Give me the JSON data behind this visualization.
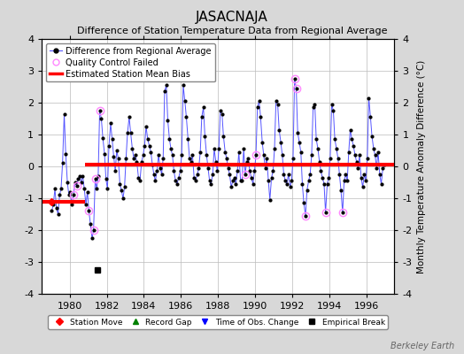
{
  "title": "JASACNAJA",
  "subtitle": "Difference of Station Temperature Data from Regional Average",
  "ylabel_right": "Monthly Temperature Anomaly Difference (°C)",
  "watermark": "Berkeley Earth",
  "ylim": [
    -4,
    4
  ],
  "xlim": [
    1978.5,
    1997.5
  ],
  "xticks": [
    1980,
    1982,
    1984,
    1986,
    1988,
    1990,
    1992,
    1994,
    1996
  ],
  "yticks": [
    -4,
    -3,
    -2,
    -1,
    0,
    1,
    2,
    3,
    4
  ],
  "bg_color": "#d8d8d8",
  "plot_bg_color": "#ffffff",
  "grid_color": "#bbbbbb",
  "line_color": "#5555ff",
  "marker_color": "#000000",
  "bias_color": "#ff0000",
  "qc_color": "#ff88ff",
  "title_fontsize": 11,
  "subtitle_fontsize": 8,
  "bias_segment1_y": -1.1,
  "bias_segment2_y": 0.05,
  "segment_break_x": 1980.83,
  "empirical_break_x": 1981.5,
  "empirical_break_y": -3.25,
  "station_move_x": 1979.0,
  "station_move_y": -1.1,
  "monthly_data": [
    1979.04,
    -1.4,
    1979.12,
    -1.2,
    1979.21,
    -0.7,
    1979.29,
    -1.3,
    1979.38,
    -1.5,
    1979.46,
    -0.9,
    1979.54,
    -0.7,
    1979.62,
    0.1,
    1979.71,
    1.65,
    1979.79,
    0.4,
    1979.88,
    -0.5,
    1979.96,
    -0.9,
    1980.04,
    -0.8,
    1980.12,
    -1.2,
    1980.21,
    -0.9,
    1980.29,
    -0.5,
    1980.38,
    -0.6,
    1980.46,
    -0.4,
    1980.54,
    -0.3,
    1980.62,
    -0.5,
    1980.71,
    -0.3,
    1980.79,
    -0.7,
    1980.88,
    -1.2,
    1980.96,
    -0.8,
    1981.04,
    -1.4,
    1981.12,
    -1.8,
    1981.21,
    -2.25,
    1981.29,
    -2.0,
    1981.38,
    -0.4,
    1981.46,
    -0.7,
    1981.54,
    -0.3,
    1981.62,
    1.75,
    1981.71,
    1.5,
    1981.79,
    0.9,
    1981.88,
    0.4,
    1981.96,
    -0.4,
    1982.04,
    -0.7,
    1982.12,
    0.65,
    1982.21,
    1.35,
    1982.29,
    0.85,
    1982.38,
    0.3,
    1982.46,
    -0.15,
    1982.54,
    0.5,
    1982.62,
    0.25,
    1982.71,
    -0.55,
    1982.79,
    -0.75,
    1982.88,
    -1.0,
    1982.96,
    -0.65,
    1983.04,
    0.25,
    1983.12,
    1.05,
    1983.21,
    1.55,
    1983.29,
    1.05,
    1983.38,
    0.55,
    1983.46,
    0.25,
    1983.54,
    0.35,
    1983.62,
    0.15,
    1983.71,
    -0.35,
    1983.79,
    -0.45,
    1983.88,
    0.15,
    1983.96,
    0.35,
    1984.04,
    0.65,
    1984.12,
    1.25,
    1984.21,
    0.85,
    1984.29,
    0.65,
    1984.38,
    0.45,
    1984.46,
    0.05,
    1984.54,
    -0.25,
    1984.62,
    -0.45,
    1984.71,
    -0.15,
    1984.79,
    0.35,
    1984.88,
    -0.05,
    1984.96,
    -0.25,
    1985.04,
    0.25,
    1985.12,
    2.35,
    1985.21,
    2.55,
    1985.29,
    1.45,
    1985.38,
    0.85,
    1985.46,
    0.55,
    1985.54,
    0.35,
    1985.62,
    -0.15,
    1985.71,
    -0.45,
    1985.79,
    -0.55,
    1985.88,
    -0.35,
    1985.96,
    -0.15,
    1986.04,
    0.35,
    1986.12,
    2.55,
    1986.21,
    2.05,
    1986.29,
    1.55,
    1986.38,
    0.85,
    1986.46,
    0.25,
    1986.54,
    0.15,
    1986.62,
    0.35,
    1986.71,
    -0.35,
    1986.79,
    -0.45,
    1986.88,
    -0.25,
    1986.96,
    -0.05,
    1987.04,
    0.45,
    1987.12,
    1.55,
    1987.21,
    1.85,
    1987.29,
    0.95,
    1987.38,
    0.35,
    1987.46,
    -0.05,
    1987.54,
    -0.45,
    1987.62,
    -0.55,
    1987.71,
    -0.25,
    1987.79,
    0.55,
    1987.88,
    0.15,
    1987.96,
    -0.15,
    1988.04,
    0.55,
    1988.12,
    1.75,
    1988.21,
    1.65,
    1988.29,
    0.95,
    1988.38,
    0.45,
    1988.46,
    0.25,
    1988.54,
    -0.05,
    1988.62,
    -0.25,
    1988.71,
    -0.65,
    1988.79,
    -0.45,
    1988.88,
    -0.35,
    1988.96,
    -0.55,
    1989.04,
    -0.15,
    1989.12,
    0.45,
    1989.21,
    -0.45,
    1989.29,
    -0.45,
    1989.38,
    0.55,
    1989.46,
    -0.25,
    1989.54,
    0.15,
    1989.62,
    0.25,
    1989.71,
    -0.15,
    1989.79,
    -0.35,
    1989.88,
    -0.55,
    1989.96,
    -0.15,
    1990.04,
    0.35,
    1990.12,
    1.85,
    1990.21,
    2.05,
    1990.29,
    1.55,
    1990.38,
    0.75,
    1990.46,
    0.35,
    1990.54,
    -0.05,
    1990.62,
    0.25,
    1990.71,
    -0.45,
    1990.79,
    -1.05,
    1990.88,
    -0.35,
    1990.96,
    -0.15,
    1991.04,
    0.55,
    1991.12,
    2.05,
    1991.21,
    1.95,
    1991.29,
    1.15,
    1991.38,
    0.75,
    1991.46,
    0.35,
    1991.54,
    -0.25,
    1991.62,
    -0.45,
    1991.71,
    -0.55,
    1991.79,
    -0.25,
    1991.88,
    -0.65,
    1991.96,
    -0.45,
    1992.04,
    0.25,
    1992.12,
    2.75,
    1992.21,
    2.45,
    1992.29,
    1.05,
    1992.38,
    0.75,
    1992.46,
    0.45,
    1992.54,
    -0.55,
    1992.62,
    -1.15,
    1992.71,
    -1.55,
    1992.79,
    -0.75,
    1992.88,
    -0.45,
    1992.96,
    -0.25,
    1993.04,
    0.35,
    1993.12,
    1.85,
    1993.21,
    1.95,
    1993.29,
    0.85,
    1993.38,
    0.55,
    1993.46,
    0.15,
    1993.54,
    -0.15,
    1993.62,
    -0.35,
    1993.71,
    -0.55,
    1993.79,
    -1.45,
    1993.88,
    -0.55,
    1993.96,
    -0.35,
    1994.04,
    0.25,
    1994.12,
    1.95,
    1994.21,
    1.75,
    1994.29,
    0.85,
    1994.38,
    0.55,
    1994.46,
    0.25,
    1994.54,
    -0.25,
    1994.62,
    -0.75,
    1994.71,
    -1.45,
    1994.79,
    -0.45,
    1994.88,
    -0.25,
    1994.96,
    -0.45,
    1995.04,
    0.45,
    1995.12,
    1.15,
    1995.21,
    0.85,
    1995.29,
    0.65,
    1995.38,
    0.35,
    1995.46,
    0.15,
    1995.54,
    -0.05,
    1995.62,
    0.35,
    1995.71,
    -0.35,
    1995.79,
    -0.65,
    1995.88,
    -0.25,
    1995.96,
    -0.45,
    1996.04,
    0.25,
    1996.12,
    2.15,
    1996.21,
    1.55,
    1996.29,
    0.95,
    1996.38,
    0.55,
    1996.46,
    0.35,
    1996.54,
    -0.05,
    1996.62,
    0.45,
    1996.71,
    -0.25,
    1996.79,
    -0.55,
    1996.88,
    -0.05,
    1996.96,
    0.05
  ],
  "qc_failed_points": [
    [
      1980.21,
      -0.9
    ],
    [
      1980.38,
      -0.6
    ],
    [
      1981.04,
      -1.4
    ],
    [
      1981.29,
      -2.0
    ],
    [
      1981.38,
      -0.4
    ],
    [
      1981.62,
      1.75
    ],
    [
      1989.46,
      -0.25
    ],
    [
      1990.04,
      0.35
    ],
    [
      1992.12,
      2.75
    ],
    [
      1992.21,
      2.45
    ],
    [
      1992.71,
      -1.55
    ],
    [
      1993.79,
      -1.45
    ],
    [
      1994.71,
      -1.45
    ]
  ]
}
